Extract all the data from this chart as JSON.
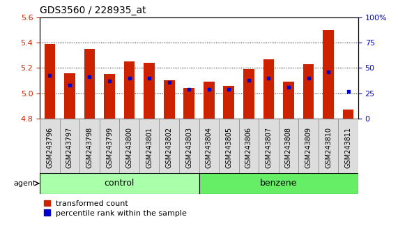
{
  "title": "GDS3560 / 228935_at",
  "samples": [
    "GSM243796",
    "GSM243797",
    "GSM243798",
    "GSM243799",
    "GSM243800",
    "GSM243801",
    "GSM243802",
    "GSM243803",
    "GSM243804",
    "GSM243805",
    "GSM243806",
    "GSM243807",
    "GSM243808",
    "GSM243809",
    "GSM243810",
    "GSM243811"
  ],
  "bar_values": [
    5.39,
    5.16,
    5.35,
    5.15,
    5.25,
    5.24,
    5.1,
    5.04,
    5.09,
    5.06,
    5.19,
    5.27,
    5.09,
    5.23,
    5.5,
    4.87
  ],
  "percentile_values": [
    43,
    33,
    41,
    37,
    40,
    40,
    36,
    29,
    29,
    29,
    38,
    40,
    31,
    40,
    46,
    27
  ],
  "ylim_left": [
    4.8,
    5.6
  ],
  "ylim_right": [
    0,
    100
  ],
  "bar_color": "#CC2200",
  "dot_color": "#0000CC",
  "bar_bottom": 4.8,
  "group_labels": [
    "control",
    "benzene"
  ],
  "group_colors": [
    "#AAFFAA",
    "#66EE66"
  ],
  "agent_label": "agent",
  "legend_items": [
    "transformed count",
    "percentile rank within the sample"
  ],
  "ylabel_left_color": "#CC2200",
  "ylabel_right_color": "#0000CC",
  "yticks_left": [
    4.8,
    5.0,
    5.2,
    5.4,
    5.6
  ],
  "yticks_right": [
    0,
    25,
    50,
    75,
    100
  ],
  "background_color": "#FFFFFF",
  "tick_label_fontsize": 7,
  "bar_width": 0.55,
  "tick_bg_color": "#DDDDDD"
}
